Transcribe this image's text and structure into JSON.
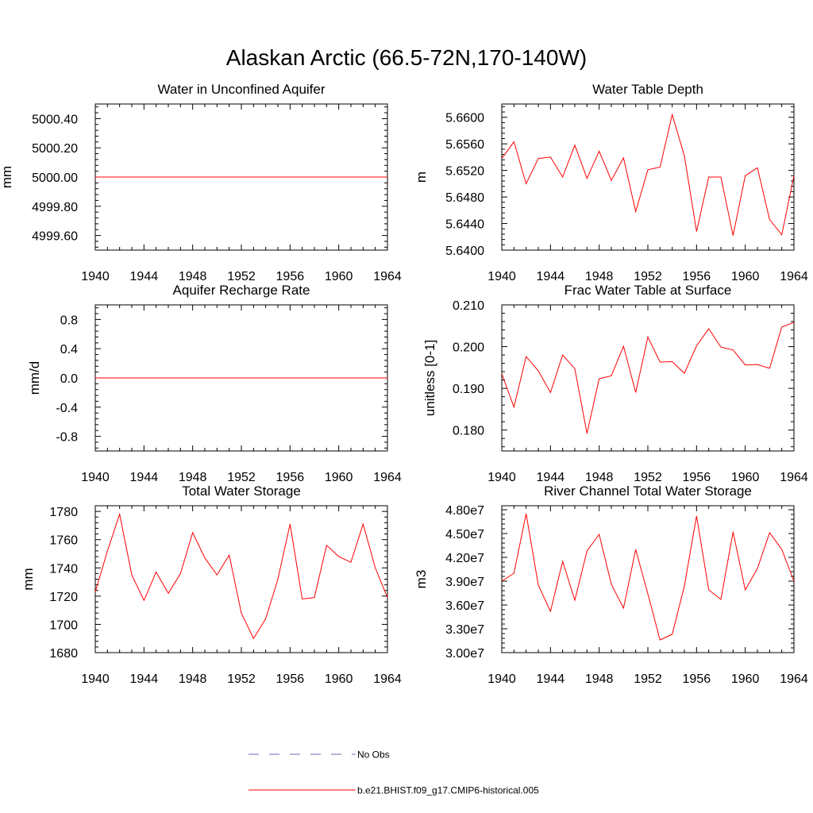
{
  "title": "Alaskan Arctic (66.5-72N,170-140W)",
  "colors": {
    "model": "#ff0000",
    "obs": "#6a6ab4",
    "axis": "#000000"
  },
  "legend": [
    {
      "label": "No Obs",
      "style": "dashed",
      "color": "#6a6ab4"
    },
    {
      "label": "b.e21.BHIST.f09_g17.CMIP6-historical.005",
      "style": "solid",
      "color": "#ff0000"
    }
  ],
  "chart_data": [
    {
      "type": "line",
      "title": "Water in Unconfined Aquifer",
      "ylabel": "mm",
      "xlim": [
        1940,
        1964
      ],
      "ylim": [
        4999.5,
        5000.5
      ],
      "xticks": [
        "1940",
        "1944",
        "1948",
        "1952",
        "1956",
        "1960",
        "1964"
      ],
      "yticks": [
        4999.6,
        4999.8,
        5000.0,
        5000.2,
        5000.4
      ],
      "ytick_labels": [
        "4999.60",
        "4999.80",
        "5000.00",
        "5000.20",
        "5000.40"
      ],
      "x": [
        1940,
        1941,
        1942,
        1943,
        1944,
        1945,
        1946,
        1947,
        1948,
        1949,
        1950,
        1951,
        1952,
        1953,
        1954,
        1955,
        1956,
        1957,
        1958,
        1959,
        1960,
        1961,
        1962,
        1963,
        1964
      ],
      "series": [
        {
          "values": [
            5000,
            5000,
            5000,
            5000,
            5000,
            5000,
            5000,
            5000,
            5000,
            5000,
            5000,
            5000,
            5000,
            5000,
            5000,
            5000,
            5000,
            5000,
            5000,
            5000,
            5000,
            5000,
            5000,
            5000,
            5000
          ]
        }
      ]
    },
    {
      "type": "line",
      "title": "Water Table Depth",
      "ylabel": "m",
      "xlim": [
        1940,
        1964
      ],
      "ylim": [
        5.64,
        5.662
      ],
      "xticks": [
        "1940",
        "1944",
        "1948",
        "1952",
        "1956",
        "1960",
        "1964"
      ],
      "yticks": [
        5.64,
        5.644,
        5.648,
        5.652,
        5.656,
        5.66
      ],
      "ytick_labels": [
        "5.6400",
        "5.6440",
        "5.6480",
        "5.6520",
        "5.6560",
        "5.6600"
      ],
      "x": [
        1940,
        1941,
        1942,
        1943,
        1944,
        1945,
        1946,
        1947,
        1948,
        1949,
        1950,
        1951,
        1952,
        1953,
        1954,
        1955,
        1956,
        1957,
        1958,
        1959,
        1960,
        1961,
        1962,
        1963,
        1964
      ],
      "series": [
        {
          "values": [
            5.6538,
            5.6563,
            5.65,
            5.6538,
            5.654,
            5.651,
            5.6558,
            5.6508,
            5.6549,
            5.6505,
            5.6539,
            5.6458,
            5.6521,
            5.6525,
            5.6604,
            5.6542,
            5.6428,
            5.651,
            5.651,
            5.6422,
            5.6512,
            5.6524,
            5.6446,
            5.6423,
            5.6512
          ]
        }
      ]
    },
    {
      "type": "line",
      "title": "Aquifer Recharge Rate",
      "ylabel": "mm/d",
      "xlim": [
        1940,
        1964
      ],
      "ylim": [
        -1.0,
        1.0
      ],
      "xticks": [
        "1940",
        "1944",
        "1948",
        "1952",
        "1956",
        "1960",
        "1964"
      ],
      "yticks": [
        -0.8,
        -0.4,
        0.0,
        0.4,
        0.8
      ],
      "ytick_labels": [
        "-0.8",
        "-0.4",
        "0.0",
        "0.4",
        "0.8"
      ],
      "x": [
        1940,
        1941,
        1942,
        1943,
        1944,
        1945,
        1946,
        1947,
        1948,
        1949,
        1950,
        1951,
        1952,
        1953,
        1954,
        1955,
        1956,
        1957,
        1958,
        1959,
        1960,
        1961,
        1962,
        1963,
        1964
      ],
      "series": [
        {
          "values": [
            0,
            0,
            0,
            0,
            0,
            0,
            0,
            0,
            0,
            0,
            0,
            0,
            0,
            0,
            0,
            0,
            0,
            0,
            0,
            0,
            0,
            0,
            0,
            0,
            0
          ]
        }
      ]
    },
    {
      "type": "line",
      "title": "Frac Water Table at Surface",
      "ylabel": "unitless [0-1]",
      "xlim": [
        1940,
        1964
      ],
      "ylim": [
        0.175,
        0.21
      ],
      "xticks": [
        "1940",
        "1944",
        "1948",
        "1952",
        "1956",
        "1960",
        "1964"
      ],
      "yticks": [
        0.18,
        0.19,
        0.2,
        0.21
      ],
      "ytick_labels": [
        "0.180",
        "0.190",
        "0.200",
        "0.210"
      ],
      "x": [
        1940,
        1941,
        1942,
        1943,
        1944,
        1945,
        1946,
        1947,
        1948,
        1949,
        1950,
        1951,
        1952,
        1953,
        1954,
        1955,
        1956,
        1957,
        1958,
        1959,
        1960,
        1961,
        1962,
        1963,
        1964
      ],
      "series": [
        {
          "values": [
            0.1935,
            0.1855,
            0.1976,
            0.1942,
            0.189,
            0.198,
            0.1947,
            0.1792,
            0.1923,
            0.193,
            0.2001,
            0.189,
            0.2023,
            0.1963,
            0.1964,
            0.1936,
            0.2002,
            0.2043,
            0.1999,
            0.1992,
            0.1956,
            0.1957,
            0.1948,
            0.2047,
            0.2058
          ]
        }
      ]
    },
    {
      "type": "line",
      "title": "Total Water Storage",
      "ylabel": "mm",
      "xlim": [
        1940,
        1964
      ],
      "ylim": [
        1680,
        1784
      ],
      "xticks": [
        "1940",
        "1944",
        "1948",
        "1952",
        "1956",
        "1960",
        "1964"
      ],
      "yticks": [
        1680,
        1700,
        1720,
        1740,
        1760,
        1780
      ],
      "ytick_labels": [
        "1680",
        "1700",
        "1720",
        "1740",
        "1760",
        "1780"
      ],
      "x": [
        1940,
        1941,
        1942,
        1943,
        1944,
        1945,
        1946,
        1947,
        1948,
        1949,
        1950,
        1951,
        1952,
        1953,
        1954,
        1955,
        1956,
        1957,
        1958,
        1959,
        1960,
        1961,
        1962,
        1963,
        1964
      ],
      "series": [
        {
          "values": [
            1723,
            1752,
            1778,
            1735,
            1717,
            1737,
            1722,
            1736,
            1765,
            1747,
            1735,
            1749,
            1708,
            1690,
            1704,
            1732,
            1771,
            1718,
            1719,
            1756,
            1748,
            1744,
            1771,
            1740,
            1719
          ]
        }
      ]
    },
    {
      "type": "line",
      "title": "River Channel Total Water Storage",
      "ylabel": "m3",
      "xlim": [
        1940,
        1964
      ],
      "ylim": [
        30000000,
        48500000
      ],
      "xticks": [
        "1940",
        "1944",
        "1948",
        "1952",
        "1956",
        "1960",
        "1964"
      ],
      "yticks": [
        30000000,
        33000000,
        36000000,
        39000000,
        42000000,
        45000000,
        48000000
      ],
      "ytick_labels": [
        "3.00e7",
        "3.30e7",
        "3.60e7",
        "3.90e7",
        "4.20e7",
        "4.50e7",
        "4.80e7"
      ],
      "x": [
        1940,
        1941,
        1942,
        1943,
        1944,
        1945,
        1946,
        1947,
        1948,
        1949,
        1950,
        1951,
        1952,
        1953,
        1954,
        1955,
        1956,
        1957,
        1958,
        1959,
        1960,
        1961,
        1962,
        1963,
        1964
      ],
      "series": [
        {
          "values": [
            39000000,
            40000000,
            47500000,
            38500000,
            35200000,
            41500000,
            36600000,
            42800000,
            44900000,
            38600000,
            35600000,
            43000000,
            37400000,
            31600000,
            32300000,
            38400000,
            47200000,
            37900000,
            36700000,
            45200000,
            37900000,
            40600000,
            45100000,
            43000000,
            39000000
          ]
        }
      ]
    }
  ]
}
